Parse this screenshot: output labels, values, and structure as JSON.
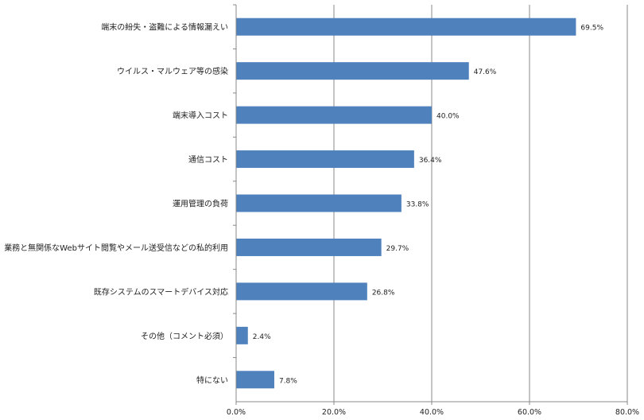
{
  "chart_data": {
    "type": "bar",
    "orientation": "horizontal",
    "categories": [
      "端末の紛失・盗難による情報漏えい",
      "ウイルス・マルウェア等の感染",
      "端末導入コスト",
      "通信コスト",
      "運用管理の負荷",
      "業務と無関係なWebサイト閲覧やメール送受信などの私的利用",
      "既存システムのスマートデバイス対応",
      "その他（コメント必須）",
      "特にない"
    ],
    "values": [
      69.5,
      47.6,
      40.0,
      36.4,
      33.8,
      29.7,
      26.8,
      2.4,
      7.8
    ],
    "value_labels": [
      "69.5%",
      "47.6%",
      "40.0%",
      "36.4%",
      "33.8%",
      "29.7%",
      "26.8%",
      "2.4%",
      "7.8%"
    ],
    "xlim": [
      0,
      80
    ],
    "x_ticks": [
      0,
      20,
      40,
      60,
      80
    ],
    "x_tick_labels": [
      "0.0%",
      "20.0%",
      "40.0%",
      "60.0%",
      "80.0%"
    ],
    "grid": "vertical",
    "legend": "none",
    "title": "",
    "xlabel": "",
    "ylabel": ""
  },
  "colors": {
    "bar": "#4f81bd",
    "grid": "#888888",
    "axis": "#888888"
  }
}
